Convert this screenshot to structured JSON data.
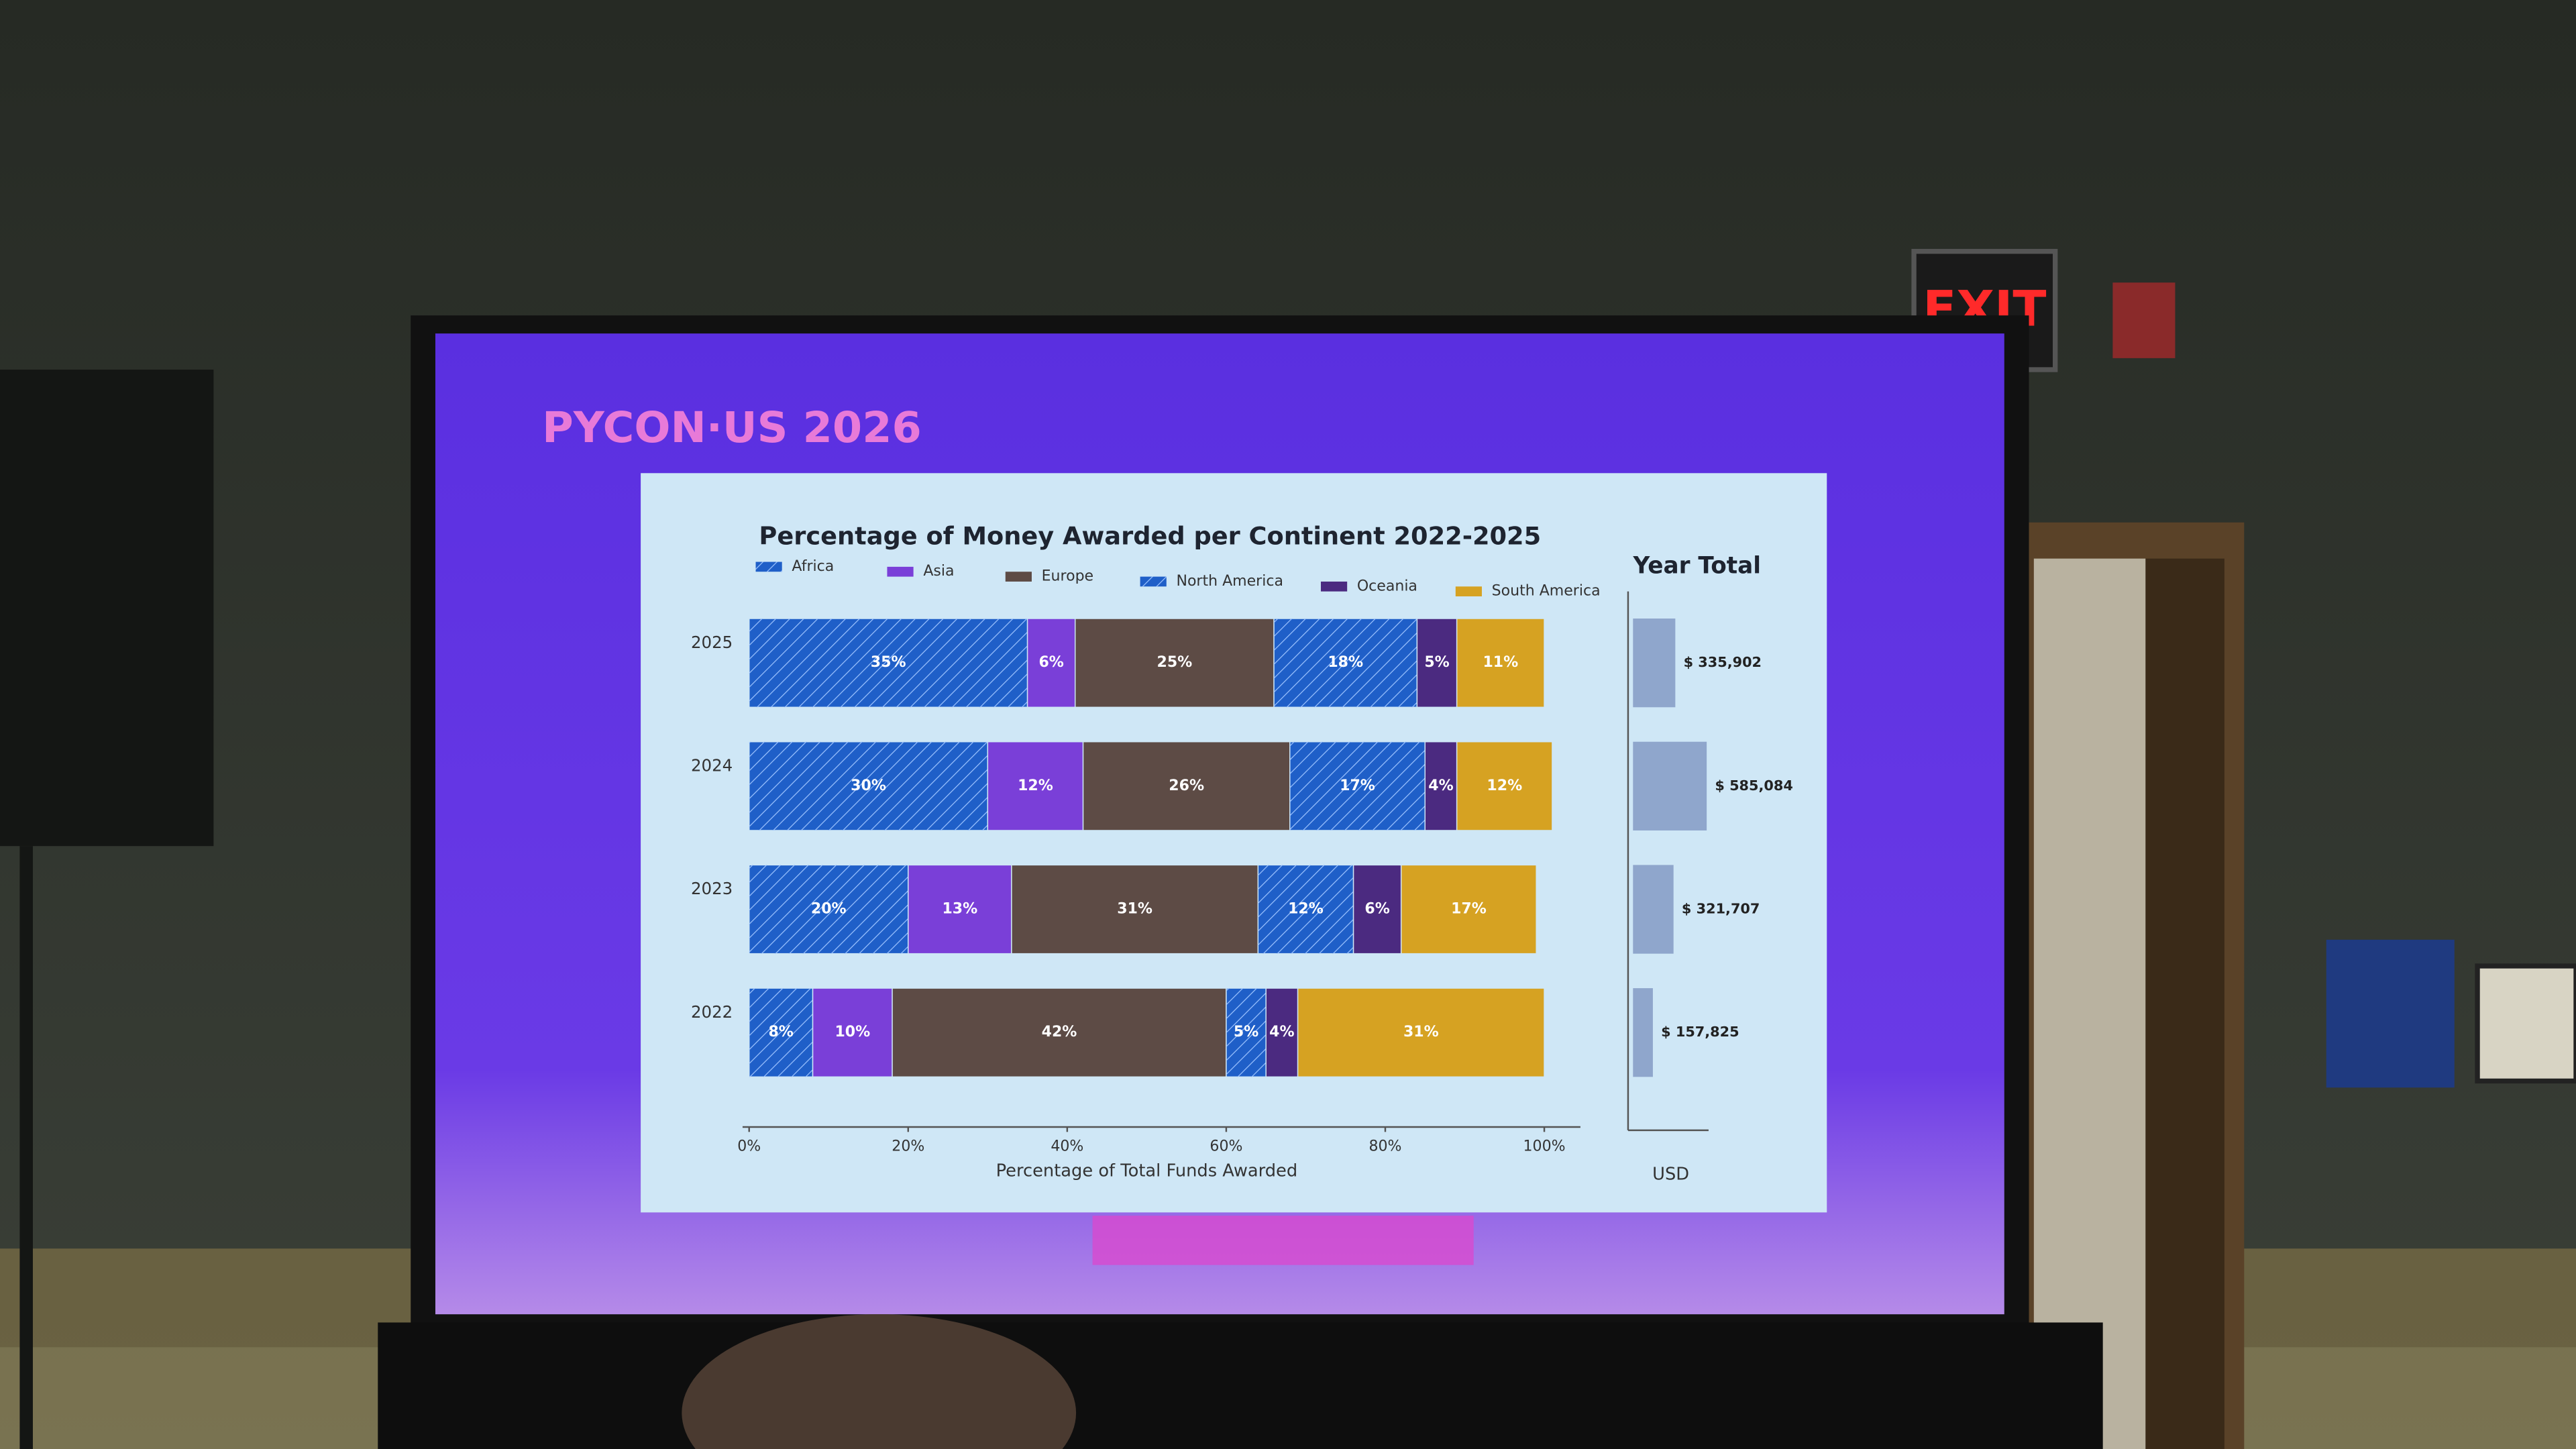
{
  "scene": {
    "logo": "PYCON·US 2026",
    "exit_sign": "EXIT"
  },
  "chart_data": [
    {
      "type": "bar",
      "orientation": "horizontal",
      "stacked": true,
      "title": "Percentage of Money Awarded per Continent 2022-2025",
      "xlabel": "Percentage of Total Funds Awarded",
      "categories": [
        "2025",
        "2024",
        "2023",
        "2022"
      ],
      "series": [
        {
          "name": "Africa",
          "color": "#1f5fc8",
          "hatch": true,
          "values": [
            35,
            30,
            20,
            8
          ],
          "value_labels": [
            "35%",
            "30%",
            "20%",
            "8%"
          ]
        },
        {
          "name": "Asia",
          "color": "#7a3fd8",
          "hatch": false,
          "values": [
            6,
            12,
            13,
            10
          ],
          "value_labels": [
            "6%",
            "12%",
            "13%",
            "10%"
          ]
        },
        {
          "name": "Europe",
          "color": "#5d4b45",
          "hatch": false,
          "values": [
            25,
            26,
            31,
            42
          ],
          "value_labels": [
            "25%",
            "26%",
            "31%",
            "42%"
          ]
        },
        {
          "name": "North America",
          "color": "#1f5fc8",
          "hatch": true,
          "values": [
            18,
            17,
            12,
            5
          ],
          "value_labels": [
            "18%",
            "17%",
            "12%",
            "5%"
          ]
        },
        {
          "name": "Oceania",
          "color": "#4b2a80",
          "hatch": false,
          "values": [
            5,
            4,
            6,
            4
          ],
          "value_labels": [
            "5%",
            "4%",
            "6%",
            "4%"
          ]
        },
        {
          "name": "South America",
          "color": "#d6a222",
          "hatch": false,
          "values": [
            11,
            12,
            17,
            31
          ],
          "value_labels": [
            "11%",
            "12%",
            "17%",
            "31%"
          ]
        }
      ],
      "xlim": [
        0,
        100
      ],
      "xticks": [
        {
          "value": 0,
          "label": "0%"
        },
        {
          "value": 20,
          "label": "20%"
        },
        {
          "value": 40,
          "label": "40%"
        },
        {
          "value": 60,
          "label": "60%"
        },
        {
          "value": 80,
          "label": "80%"
        },
        {
          "value": 100,
          "label": "100%"
        }
      ]
    },
    {
      "type": "bar",
      "orientation": "horizontal",
      "title": "Year Total",
      "xlabel": "USD",
      "color": "#8fa6cc",
      "values": [
        335902,
        585084,
        321707,
        157825
      ],
      "value_labels": [
        "$ 335,902",
        "$ 585,084",
        "$ 321,707",
        "$ 157,825"
      ],
      "xlim": [
        0,
        600000
      ]
    }
  ]
}
